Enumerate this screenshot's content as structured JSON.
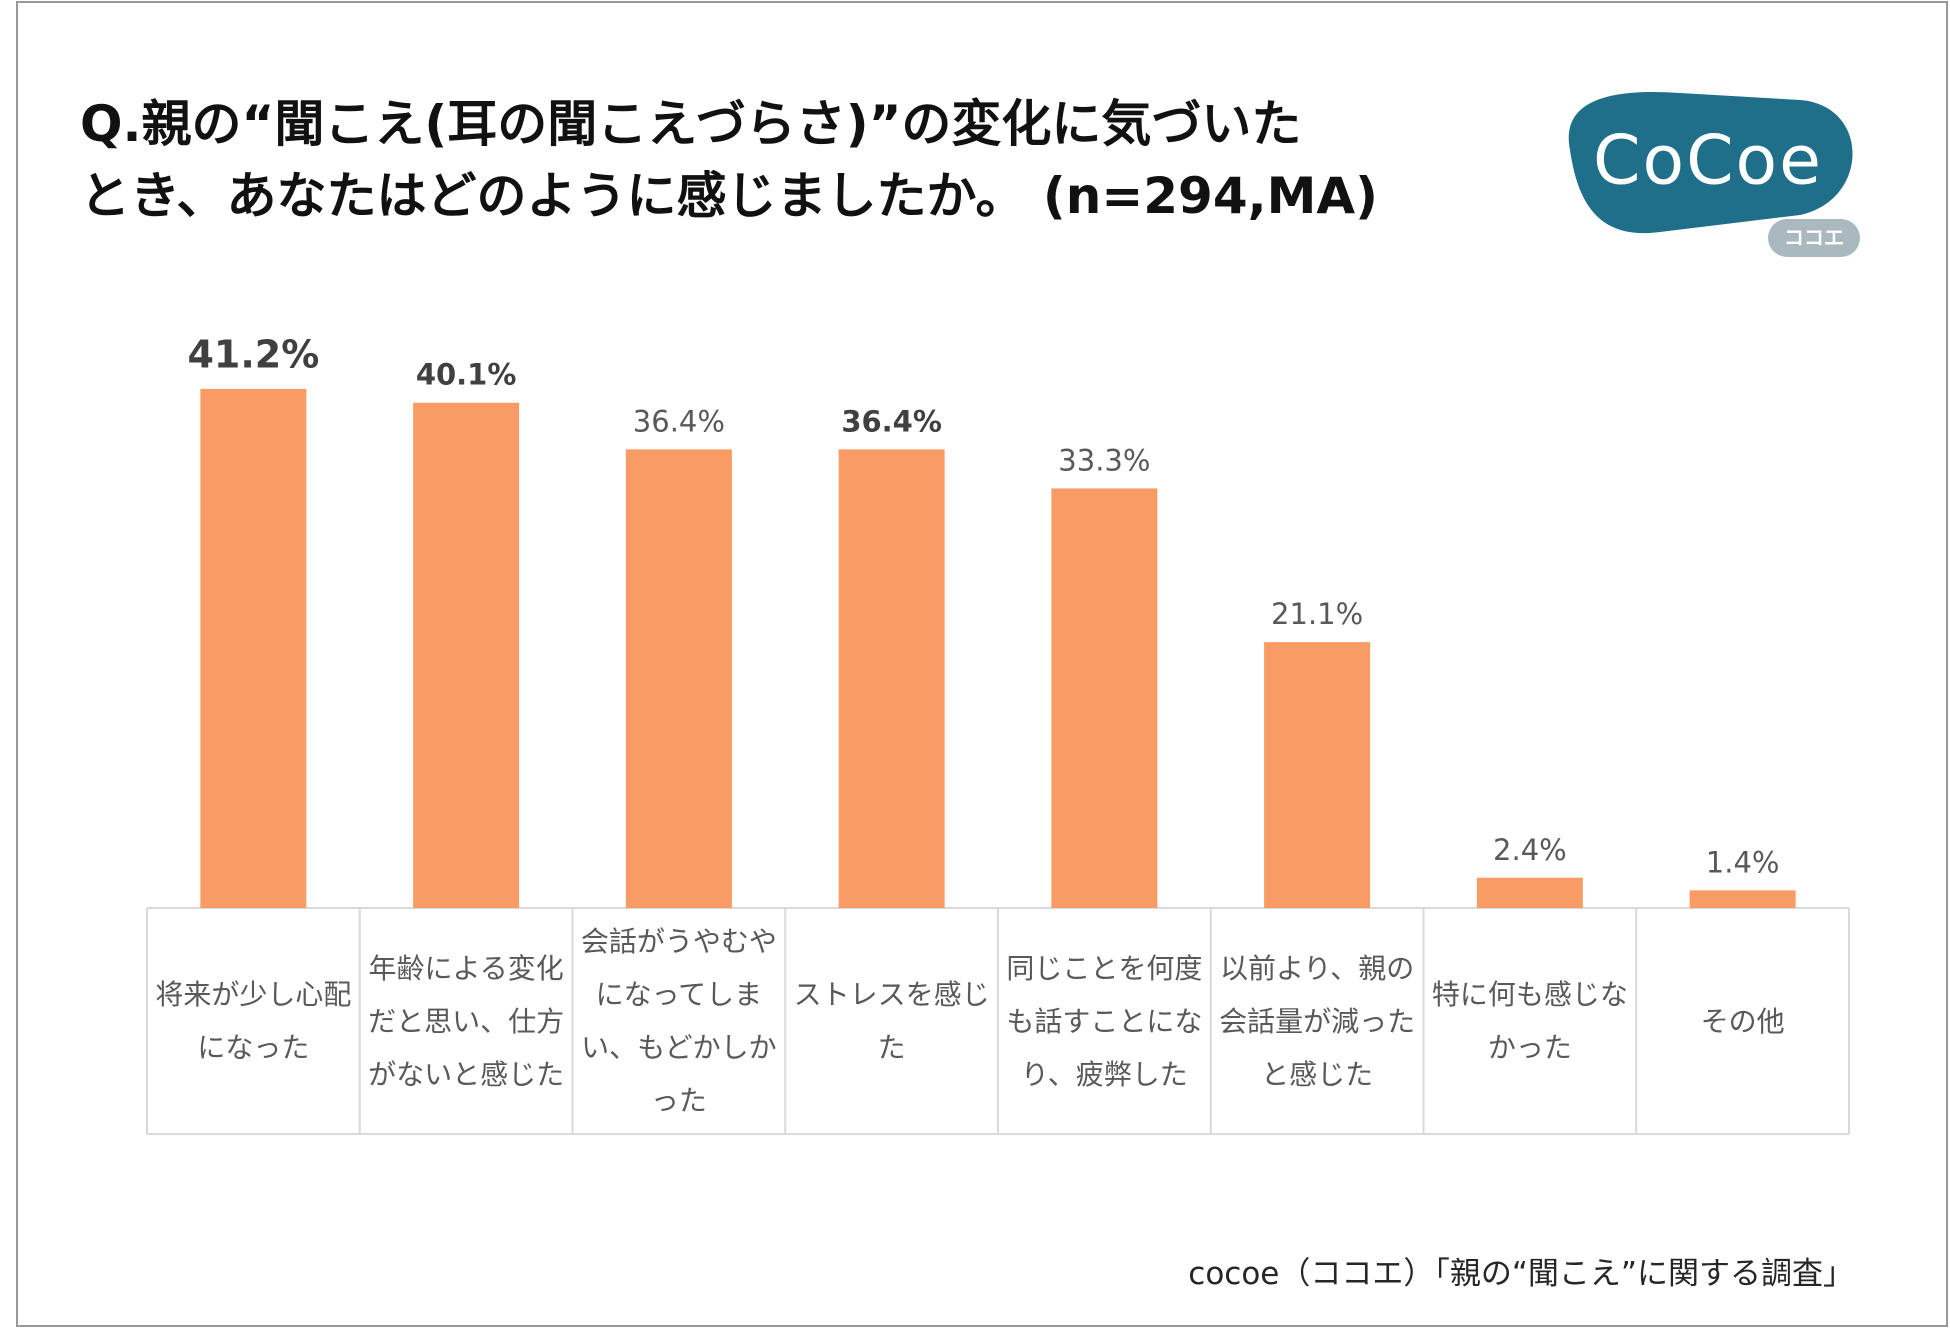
{
  "chart_data": {
    "type": "bar",
    "title": "Q.親の“聞こえ(耳の聞こえづらさ)”の変化に気づいた\nとき、あなたはどのように感じましたか。 (n=294,MA)",
    "logo": {
      "text": "CoCoe",
      "subtext": "ココエ"
    },
    "source": "cocoe（ココエ）「親の“聞こえ”に関する調査」",
    "categories": [
      "将来が少し心配になった",
      "年齢による変化だと思い、仕方がないと感じた",
      "会話がうやむやになってしまい、もどかしかった",
      "ストレスを感じた",
      "同じことを何度も話すことになり、疲弊した",
      "以前より、親の会話量が減ったと感じた",
      "特に何も感じなかった",
      "その他"
    ],
    "values": [
      41.2,
      40.1,
      36.4,
      36.4,
      33.3,
      21.1,
      2.4,
      1.4
    ],
    "value_labels": [
      "41.2%",
      "40.1%",
      "36.4%",
      "36.4%",
      "33.3%",
      "21.1%",
      "2.4%",
      "1.4%"
    ],
    "color": "#f99b65",
    "ylim": [
      0,
      45
    ]
  }
}
